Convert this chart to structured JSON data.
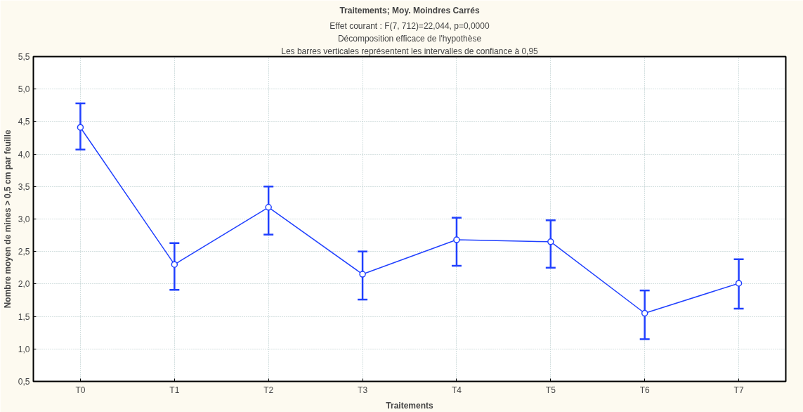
{
  "chart_data": {
    "type": "line",
    "title": "Traitements; Moy. Moindres Carrés",
    "subtitle": "Effet courant : F(7, 712)=22,044, p=0,0000",
    "annotations": [
      "Décomposition efficace de l'hypothèse",
      "Les barres verticales représentent les intervalles de confiance à 0,95"
    ],
    "xlabel": "Traitements",
    "ylabel": "Nombre moyen de mines > 0,5 cm par feuille",
    "categories": [
      "T0",
      "T1",
      "T2",
      "T3",
      "T4",
      "T5",
      "T6",
      "T7"
    ],
    "series": [
      {
        "color": "#2040ff",
        "values": [
          4.41,
          2.3,
          3.18,
          2.15,
          2.68,
          2.65,
          1.55,
          2.01
        ],
        "errors": [
          [
            4.07,
            4.78
          ],
          [
            1.91,
            2.63
          ],
          [
            2.76,
            3.5
          ],
          [
            1.76,
            2.5
          ],
          [
            2.28,
            3.02
          ],
          [
            2.25,
            2.98
          ],
          [
            1.15,
            1.9
          ],
          [
            1.62,
            2.38
          ]
        ]
      }
    ],
    "ylim": [
      0.5,
      5.5
    ],
    "yticks": [
      {
        "value": 0.5,
        "label": "0,5"
      },
      {
        "value": 1,
        "label": "1,0"
      },
      {
        "value": 1.5,
        "label": "1,5"
      },
      {
        "value": 2,
        "label": "2,0"
      },
      {
        "value": 2.5,
        "label": "2,5"
      },
      {
        "value": 3,
        "label": "3,0"
      },
      {
        "value": 3.5,
        "label": "3,5"
      },
      {
        "value": 4,
        "label": "4,0"
      },
      {
        "value": 4.5,
        "label": "4,5"
      },
      {
        "value": 5,
        "label": "5,0"
      },
      {
        "value": 5.5,
        "label": "5,5"
      }
    ],
    "grid": true,
    "marker": "circle",
    "line_style": "solid"
  }
}
